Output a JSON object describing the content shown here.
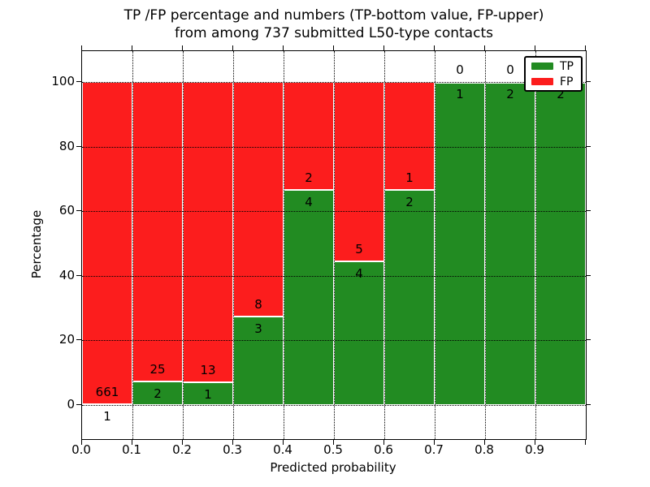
{
  "figure_title": {
    "line1": "TP /FP percentage and numbers (TP-bottom value, FP-upper)",
    "line2": "from among 737 submitted L50-type contacts"
  },
  "chart_data": {
    "type": "bar",
    "subtype": "stacked-100-percent",
    "title": "TP /FP percentage and numbers (TP-bottom value, FP-upper) from among 737 submitted L50-type contacts",
    "xlabel": "Predicted probability",
    "ylabel": "Percentage",
    "categories": [
      "0.0-0.1",
      "0.1-0.2",
      "0.2-0.3",
      "0.3-0.4",
      "0.4-0.5",
      "0.5-0.6",
      "0.6-0.7",
      "0.7-0.8",
      "0.8-0.9",
      "0.9-1.0"
    ],
    "series": [
      {
        "name": "TP",
        "color": "#228b22",
        "counts": [
          1,
          2,
          1,
          3,
          4,
          4,
          2,
          1,
          2,
          2
        ]
      },
      {
        "name": "FP",
        "color": "#fc1d1d",
        "counts": [
          661,
          25,
          13,
          8,
          2,
          5,
          1,
          0,
          0,
          0
        ]
      }
    ],
    "tp_percent_of_bin": [
      0.15,
      7.41,
      7.14,
      27.27,
      66.67,
      44.44,
      66.67,
      100,
      100,
      100
    ],
    "total_contacts": 737,
    "x_ticks": [
      "0.0",
      "0.1",
      "0.2",
      "0.3",
      "0.4",
      "0.5",
      "0.6",
      "0.7",
      "0.8",
      "0.9"
    ],
    "y_ticks": [
      0,
      20,
      40,
      60,
      80,
      100
    ],
    "axis_note": "bars stacked to 100%, TP on bottom, FP on top; count labels placed above (FP) and below (TP) the segment boundary",
    "grid": "dotted black, drawn over bars",
    "bar_edge_color": "#ffffff",
    "legend": {
      "position": "upper right",
      "items": [
        {
          "label": "TP",
          "color": "#228b22"
        },
        {
          "label": "FP",
          "color": "#fc1d1d"
        }
      ]
    }
  }
}
